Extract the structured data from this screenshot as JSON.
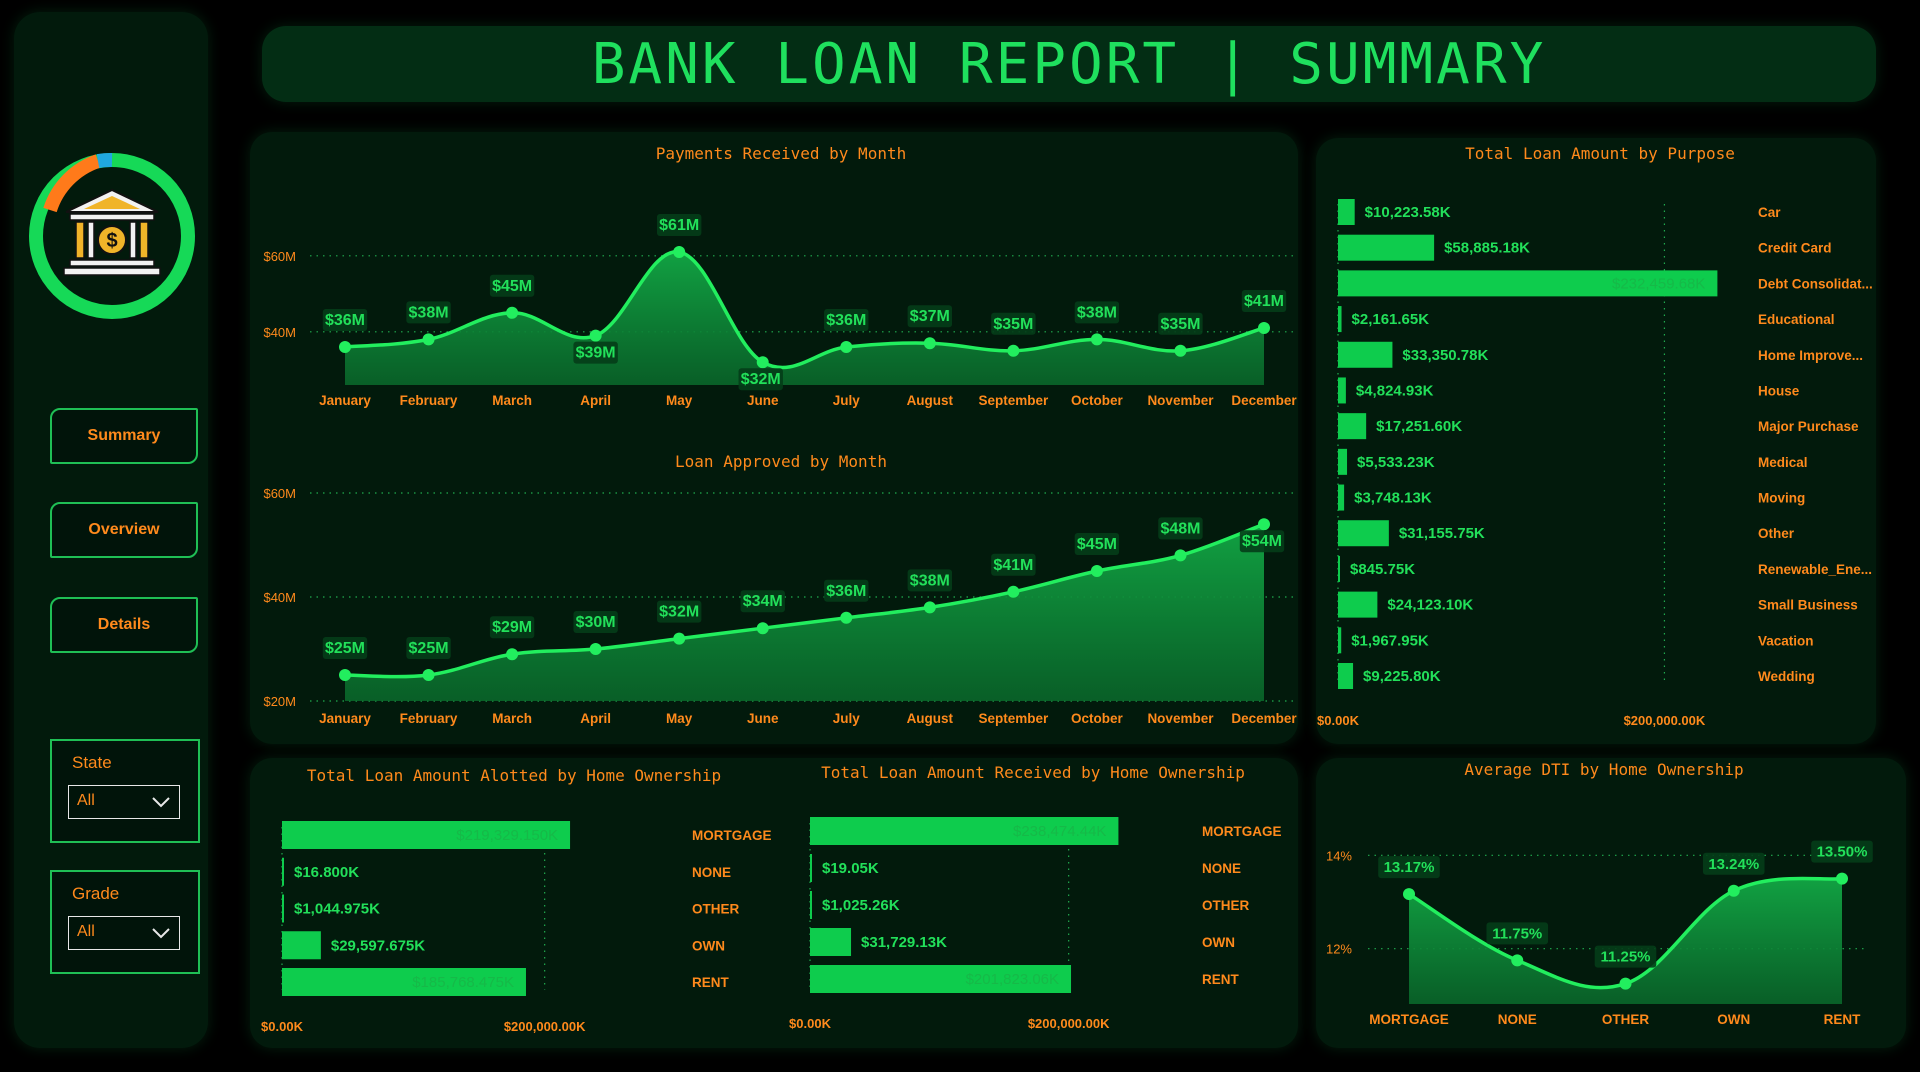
{
  "header": {
    "title": "BANK LOAN REPORT | SUMMARY"
  },
  "nav": {
    "items": [
      "Summary",
      "Overview",
      "Details"
    ]
  },
  "filters": [
    {
      "label": "State",
      "value": "All"
    },
    {
      "label": "Grade",
      "value": "All"
    }
  ],
  "colors": {
    "accent": "#1fe05e",
    "orange": "#ff8a1c",
    "panel": "#021a0c",
    "bar": "#0ecc4d"
  },
  "icons": {
    "logo": "bank-dollar-icon"
  },
  "chart_data": [
    {
      "id": "payments",
      "type": "area",
      "title": "Payments Received by Month",
      "categories": [
        "January",
        "February",
        "March",
        "April",
        "May",
        "June",
        "July",
        "August",
        "September",
        "October",
        "November",
        "December"
      ],
      "values": [
        36,
        38,
        45,
        39,
        61,
        32,
        36,
        37,
        35,
        38,
        35,
        41
      ],
      "labels": [
        "$36M",
        "$38M",
        "$45M",
        "$39M",
        "$61M",
        "$32M",
        "$36M",
        "$37M",
        "$35M",
        "$38M",
        "$35M",
        "$41M"
      ],
      "yticks": [
        {
          "v": 60,
          "label": "$60M"
        },
        {
          "v": 40,
          "label": "$40M"
        }
      ],
      "ylim": [
        26,
        66
      ],
      "grid": true
    },
    {
      "id": "approved",
      "type": "area",
      "title": "Loan Approved by Month",
      "categories": [
        "January",
        "February",
        "March",
        "April",
        "May",
        "June",
        "July",
        "August",
        "September",
        "October",
        "November",
        "December"
      ],
      "values": [
        25,
        25,
        29,
        30,
        32,
        34,
        36,
        38,
        41,
        45,
        48,
        54
      ],
      "labels": [
        "$25M",
        "$25M",
        "$29M",
        "$30M",
        "$32M",
        "$34M",
        "$36M",
        "$38M",
        "$41M",
        "$45M",
        "$48M",
        "$54M"
      ],
      "yticks": [
        {
          "v": 60,
          "label": "$60M"
        },
        {
          "v": 40,
          "label": "$40M"
        },
        {
          "v": 20,
          "label": "$20M"
        }
      ],
      "ylim": [
        20,
        60
      ],
      "grid": true
    },
    {
      "id": "purpose",
      "type": "bar",
      "orientation": "horizontal",
      "title": "Total Loan Amount by Purpose",
      "categories": [
        "Car",
        "Credit Card",
        "Debt Consolidat...",
        "Educational",
        "Home Improve...",
        "House",
        "Major Purchase",
        "Medical",
        "Moving",
        "Other",
        "Renewable_Ene...",
        "Small Business",
        "Vacation",
        "Wedding"
      ],
      "values": [
        10223.58,
        58885.18,
        232459.68,
        2161.65,
        33350.78,
        4824.93,
        17251.6,
        5533.23,
        3748.13,
        31155.75,
        845.75,
        24123.1,
        1967.95,
        9225.8
      ],
      "labels": [
        "$10,223.58K",
        "$58,885.18K",
        "$232,459.68K",
        "$2,161.65K",
        "$33,350.78K",
        "$4,824.93K",
        "$17,251.60K",
        "$5,533.23K",
        "$3,748.13K",
        "$31,155.75K",
        "$845.75K",
        "$24,123.10K",
        "$1,967.95K",
        "$9,225.80K"
      ],
      "xticks": [
        {
          "v": 0,
          "label": "$0.00K"
        },
        {
          "v": 200000,
          "label": "$200,000.00K"
        }
      ],
      "xlim": [
        0,
        280000
      ]
    },
    {
      "id": "alloted",
      "type": "bar",
      "orientation": "horizontal",
      "title": "Total Loan Amount Alotted by Home Ownership",
      "categories": [
        "MORTGAGE",
        "NONE",
        "OTHER",
        "OWN",
        "RENT"
      ],
      "values": [
        219329.15,
        16.8,
        1044.975,
        29597.675,
        185768.475
      ],
      "labels": [
        "$219,329.150K",
        "$16.800K",
        "$1,044.975K",
        "$29,597.675K",
        "$185,768.475K"
      ],
      "xticks": [
        {
          "v": 0,
          "label": "$0.00K"
        },
        {
          "v": 200000,
          "label": "$200,000.00K"
        }
      ],
      "xlim": [
        0,
        300000
      ]
    },
    {
      "id": "received",
      "type": "bar",
      "orientation": "horizontal",
      "title": "Total Loan Amount Received by Home Ownership",
      "categories": [
        "MORTGAGE",
        "NONE",
        "OTHER",
        "OWN",
        "RENT"
      ],
      "values": [
        238474.44,
        19.05,
        1025.26,
        31729.13,
        201823.06
      ],
      "labels": [
        "$238,474.44K",
        "$19.05K",
        "$1,025.26K",
        "$31,729.13K",
        "$201,823.06K"
      ],
      "xticks": [
        {
          "v": 0,
          "label": "$0.00K"
        },
        {
          "v": 200000,
          "label": "$200,000.00K"
        }
      ],
      "xlim": [
        0,
        300000
      ]
    },
    {
      "id": "dti",
      "type": "area",
      "title": "Average DTI by Home Ownership",
      "categories": [
        "MORTGAGE",
        "NONE",
        "OTHER",
        "OWN",
        "RENT"
      ],
      "values": [
        13.17,
        11.75,
        11.25,
        13.24,
        13.5
      ],
      "labels": [
        "13.17%",
        "11.75%",
        "11.25%",
        "13.24%",
        "13.50%"
      ],
      "yticks": [
        {
          "v": 14,
          "label": "14%"
        },
        {
          "v": 12,
          "label": "12%"
        }
      ],
      "ylim": [
        10.9,
        14.2
      ],
      "grid": true
    }
  ]
}
